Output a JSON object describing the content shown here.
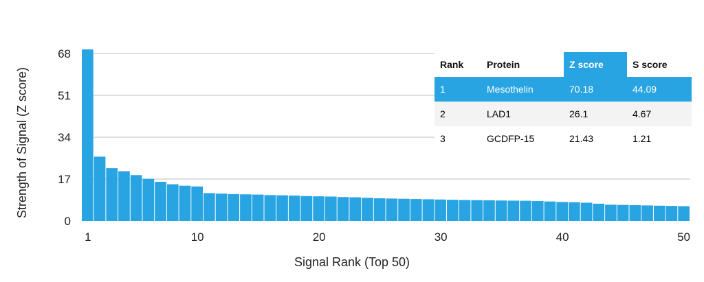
{
  "chart_data": {
    "type": "bar",
    "title": "",
    "xlabel": "Signal Rank (Top 50)",
    "ylabel": "Strength of Signal (Z score)",
    "ylim": [
      0,
      68
    ],
    "yticks": [
      "0",
      "17",
      "34",
      "51",
      "68"
    ],
    "xticks": [
      {
        "rank": 1,
        "label": "1"
      },
      {
        "rank": 10,
        "label": "10"
      },
      {
        "rank": 20,
        "label": "20"
      },
      {
        "rank": 30,
        "label": "30"
      },
      {
        "rank": 40,
        "label": "40"
      },
      {
        "rank": 50,
        "label": "50"
      }
    ],
    "grid": true,
    "bar_color": "#29a4e2",
    "values": [
      70.18,
      26.1,
      21.43,
      20.2,
      18.6,
      17.1,
      15.9,
      14.9,
      14.3,
      14.0,
      11.3,
      11.1,
      10.9,
      10.8,
      10.7,
      10.5,
      10.4,
      10.3,
      10.1,
      10.0,
      9.9,
      9.7,
      9.6,
      9.4,
      9.2,
      9.1,
      9.0,
      8.9,
      8.8,
      8.7,
      8.6,
      8.5,
      8.45,
      8.4,
      8.3,
      8.25,
      8.2,
      8.1,
      7.9,
      7.7,
      7.6,
      7.4,
      7.0,
      6.6,
      6.5,
      6.4,
      6.3,
      6.2,
      6.1,
      6.0
    ]
  },
  "table": {
    "headers": [
      "Rank",
      "Protein",
      "Z score",
      "S score"
    ],
    "rows": [
      [
        "1",
        "Mesothelin",
        "70.18",
        "44.09"
      ],
      [
        "2",
        "LAD1",
        "26.1",
        "4.67"
      ],
      [
        "3",
        "GCDFP-15",
        "21.43",
        "1.21"
      ]
    ]
  }
}
